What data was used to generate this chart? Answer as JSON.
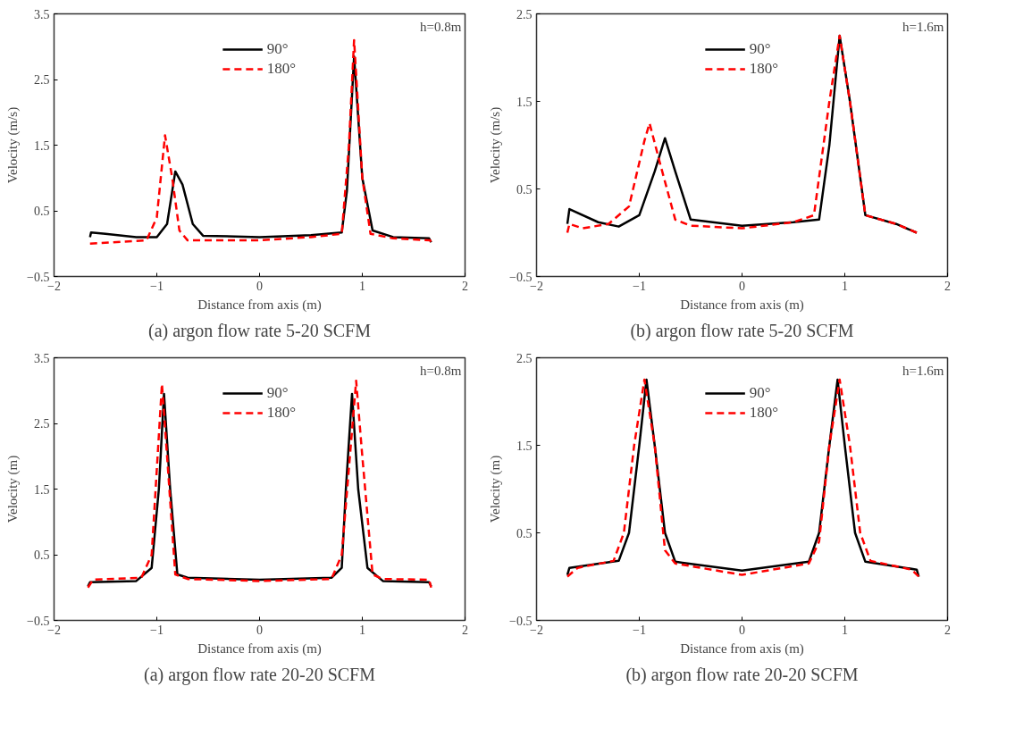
{
  "chart_data": [
    {
      "type": "line",
      "xlabel": "Distance from axis (m)",
      "ylabel": "Velocity (m/s)",
      "xlim": [
        -2,
        2
      ],
      "xticks": [
        -2,
        -1,
        0,
        1,
        2
      ],
      "ylim": [
        -0.5,
        3.5
      ],
      "yticks": [
        -0.5,
        0.5,
        1.5,
        2.5,
        3.5
      ],
      "grid": false,
      "legend": "top",
      "annotations": [
        "h=0.8m",
        "(a) argon flow rate 5-20 SCFM"
      ],
      "series": [
        {
          "name": "90°",
          "color": "#000000",
          "line_style": "solid",
          "x": [
            -1.65,
            -1.64,
            -1.5,
            -1.2,
            -1.0,
            -0.9,
            -0.82,
            -0.75,
            -0.65,
            -0.55,
            0,
            0.5,
            0.8,
            0.85,
            0.92,
            1.0,
            1.1,
            1.3,
            1.65,
            1.67
          ],
          "values": [
            0.1,
            0.17,
            0.15,
            0.1,
            0.1,
            0.3,
            1.1,
            0.9,
            0.3,
            0.12,
            0.1,
            0.13,
            0.17,
            0.8,
            2.85,
            1.0,
            0.2,
            0.1,
            0.08,
            0.02
          ]
        },
        {
          "name": "180°",
          "color": "#ff0000",
          "line_style": "dashed",
          "x": [
            -1.65,
            -1.1,
            -1.0,
            -0.92,
            -0.85,
            -0.78,
            -0.7,
            0,
            0.5,
            0.8,
            0.87,
            0.92,
            1.0,
            1.08,
            1.3,
            1.66,
            1.68
          ],
          "values": [
            0.0,
            0.05,
            0.4,
            1.65,
            1.0,
            0.2,
            0.05,
            0.05,
            0.1,
            0.15,
            1.5,
            3.1,
            1.0,
            0.15,
            0.08,
            0.05,
            0.0
          ]
        }
      ]
    },
    {
      "type": "line",
      "xlabel": "Distance from axis (m)",
      "ylabel": "Velocity (m/s)",
      "xlim": [
        -2,
        2
      ],
      "xticks": [
        -2,
        -1,
        0,
        1,
        2
      ],
      "ylim": [
        -0.5,
        2.5
      ],
      "yticks": [
        -0.5,
        0.5,
        1.5,
        2.5
      ],
      "grid": false,
      "legend": "top",
      "annotations": [
        "h=1.6m",
        "(b) argon flow rate 5-20 SCFM"
      ],
      "series": [
        {
          "name": "90°",
          "color": "#000000",
          "line_style": "solid",
          "x": [
            -1.7,
            -1.68,
            -1.4,
            -1.2,
            -1.0,
            -0.85,
            -0.75,
            -0.65,
            -0.5,
            0,
            0.5,
            0.75,
            0.85,
            0.95,
            1.05,
            1.2,
            1.5,
            1.7
          ],
          "values": [
            0.1,
            0.27,
            0.12,
            0.07,
            0.2,
            0.7,
            1.08,
            0.7,
            0.15,
            0.08,
            0.12,
            0.15,
            1.0,
            2.25,
            1.5,
            0.2,
            0.1,
            0.0
          ]
        },
        {
          "name": "180°",
          "color": "#ff0000",
          "line_style": "dashed",
          "x": [
            -1.7,
            -1.68,
            -1.55,
            -1.3,
            -1.1,
            -0.95,
            -0.9,
            -0.8,
            -0.65,
            -0.5,
            0,
            0.5,
            0.7,
            0.85,
            0.95,
            1.05,
            1.2,
            1.5,
            1.7
          ],
          "values": [
            0.0,
            0.1,
            0.05,
            0.1,
            0.3,
            1.05,
            1.25,
            0.8,
            0.15,
            0.08,
            0.05,
            0.12,
            0.2,
            1.5,
            2.25,
            1.5,
            0.2,
            0.1,
            0.0
          ]
        }
      ]
    },
    {
      "type": "line",
      "xlabel": "Distance from axis (m)",
      "ylabel": "Velocity (m)",
      "xlim": [
        -2,
        2
      ],
      "xticks": [
        -2,
        -1,
        0,
        1,
        2
      ],
      "ylim": [
        -0.5,
        3.5
      ],
      "yticks": [
        -0.5,
        0.5,
        1.5,
        2.5,
        3.5
      ],
      "grid": false,
      "legend": "top",
      "annotations": [
        "h=0.8m",
        "(a) argon flow rate 20-20 SCFM"
      ],
      "series": [
        {
          "name": "90°",
          "color": "#000000",
          "line_style": "solid",
          "x": [
            -1.67,
            -1.65,
            -1.2,
            -1.05,
            -0.98,
            -0.93,
            -0.87,
            -0.8,
            -0.7,
            0,
            0.7,
            0.8,
            0.84,
            0.9,
            0.96,
            1.05,
            1.2,
            1.65,
            1.67
          ],
          "values": [
            0.02,
            0.08,
            0.1,
            0.3,
            1.5,
            2.95,
            1.5,
            0.2,
            0.15,
            0.12,
            0.15,
            0.3,
            1.5,
            2.95,
            1.5,
            0.3,
            0.1,
            0.08,
            0.02
          ]
        },
        {
          "name": "180°",
          "color": "#ff0000",
          "line_style": "dashed",
          "x": [
            -1.67,
            -1.62,
            -1.15,
            -1.05,
            -0.95,
            -0.9,
            -0.82,
            -0.7,
            0,
            0.7,
            0.8,
            0.94,
            1.0,
            1.1,
            1.2,
            1.65,
            1.67
          ],
          "values": [
            0.0,
            0.12,
            0.15,
            0.5,
            3.1,
            2.0,
            0.2,
            0.13,
            0.1,
            0.13,
            0.5,
            3.15,
            2.0,
            0.2,
            0.13,
            0.12,
            0.0
          ]
        }
      ]
    },
    {
      "type": "line",
      "xlabel": "Distance from axis (m)",
      "ylabel": "Velocity (m)",
      "xlim": [
        -2,
        2
      ],
      "xticks": [
        -2,
        -1,
        0,
        1,
        2
      ],
      "ylim": [
        -0.5,
        2.5
      ],
      "yticks": [
        -0.5,
        0.5,
        1.5,
        2.5
      ],
      "grid": false,
      "legend": "top",
      "annotations": [
        "h=1.6m",
        "(b) argon flow rate 20-20 SCFM"
      ],
      "series": [
        {
          "name": "90°",
          "color": "#000000",
          "line_style": "solid",
          "x": [
            -1.7,
            -1.68,
            -1.2,
            -1.1,
            -1.0,
            -0.93,
            -0.85,
            -0.75,
            -0.65,
            0,
            0.65,
            0.75,
            0.85,
            0.93,
            1.0,
            1.1,
            1.2,
            1.7,
            1.72
          ],
          "values": [
            0.02,
            0.1,
            0.18,
            0.5,
            1.5,
            2.25,
            1.5,
            0.5,
            0.17,
            0.07,
            0.17,
            0.5,
            1.5,
            2.25,
            1.5,
            0.5,
            0.17,
            0.08,
            0.0
          ]
        },
        {
          "name": "180°",
          "color": "#ff0000",
          "line_style": "dashed",
          "x": [
            -1.7,
            -1.6,
            -1.25,
            -1.15,
            -1.05,
            -0.95,
            -0.85,
            -0.75,
            -0.65,
            0,
            0.65,
            0.75,
            0.85,
            0.95,
            1.05,
            1.15,
            1.25,
            1.65,
            1.72
          ],
          "values": [
            0.0,
            0.1,
            0.18,
            0.5,
            1.5,
            2.25,
            1.5,
            0.3,
            0.15,
            0.02,
            0.15,
            0.4,
            1.5,
            2.25,
            1.5,
            0.5,
            0.18,
            0.08,
            0.0
          ]
        }
      ]
    }
  ]
}
